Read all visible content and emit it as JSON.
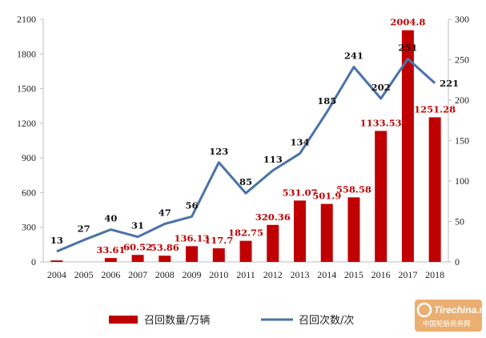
{
  "chart_data": {
    "type": "bar",
    "title": "",
    "categories": [
      "2004",
      "2005",
      "2006",
      "2007",
      "2008",
      "2009",
      "2010",
      "2011",
      "2012",
      "2013",
      "2014",
      "2015",
      "2016",
      "2017",
      "2018"
    ],
    "series": [
      {
        "name": "召回数量/万辆",
        "type": "bar",
        "axis": "left",
        "color": "#c00000",
        "values": [
          13,
          0,
          33.61,
          60.52,
          53.86,
          136.13,
          117.7,
          182.75,
          320.36,
          531.07,
          501.9,
          558.58,
          1133.53,
          2004.8,
          1251.28
        ],
        "labels": [
          "",
          "",
          "33.61",
          "60.52",
          "53.86",
          "136.13",
          "117.7",
          "182.75",
          "320.36",
          "531.07",
          "501.9",
          "558.58",
          "1133.53",
          "2004.8",
          "1251.28"
        ]
      },
      {
        "name": "召回次数/次",
        "type": "line",
        "axis": "right",
        "color": "#4a72a8",
        "values": [
          13,
          27,
          40,
          31,
          47,
          56,
          123,
          85,
          113,
          134,
          185,
          241,
          202,
          251,
          221
        ],
        "labels": [
          "13",
          "27",
          "40",
          "31",
          "47",
          "56",
          "123",
          "85",
          "113",
          "134",
          "185",
          "241",
          "202",
          "251",
          "221"
        ]
      }
    ],
    "y_left": {
      "min": 0,
      "max": 2100,
      "ticks": [
        "0",
        "300",
        "600",
        "900",
        "1200",
        "1500",
        "1800",
        "2100"
      ]
    },
    "y_right": {
      "min": 0,
      "max": 300,
      "ticks": [
        "0",
        "50",
        "100",
        "150",
        "200",
        "250",
        "300"
      ]
    },
    "grid": false,
    "legend_position": "bottom"
  },
  "legend": {
    "bar_label": "召回数量/万辆",
    "line_label": "召回次数/次"
  },
  "watermark": {
    "site": "Tirechina.net",
    "name": "中国轮胎商务网"
  }
}
